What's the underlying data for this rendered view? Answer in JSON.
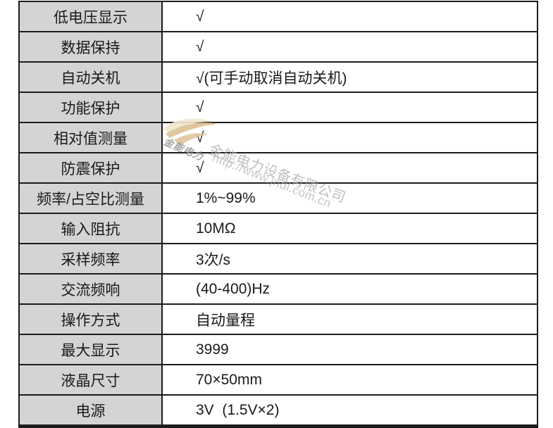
{
  "table": {
    "label_bg": "#d4d4d4",
    "border_color": "#1c1c1c",
    "rows": [
      {
        "label": "低电压显示",
        "value": "√"
      },
      {
        "label": "数据保持",
        "value": "√"
      },
      {
        "label": "自动关机",
        "value": "√(可手动取消自动关机)"
      },
      {
        "label": "功能保护",
        "value": "√"
      },
      {
        "label": "相对值测量",
        "value": "√"
      },
      {
        "label": "防震保护",
        "value": "√"
      },
      {
        "label": "频率/占空比测量",
        "value": "1%~99%"
      },
      {
        "label": "输入阻抗",
        "value": "10MΩ"
      },
      {
        "label": "采样频率",
        "value": "3次/s"
      },
      {
        "label": "交流频响",
        "value": "(40-400)Hz"
      },
      {
        "label": "操作方式",
        "value": "自动量程"
      },
      {
        "label": "最大显示",
        "value": "3999"
      },
      {
        "label": "液晶尺寸",
        "value": "70×50mm"
      },
      {
        "label": "电源",
        "value": "3V  (1.5V×2)"
      }
    ]
  },
  "watermark": {
    "logo_text": "金能电力",
    "company_name": "金能电力设备有限公司",
    "url": "http://www.jndl.com.cn",
    "text_color": "#a8a8a8",
    "logo_color_light": "#f0e7cd",
    "logo_color_dark": "#dbc094"
  }
}
